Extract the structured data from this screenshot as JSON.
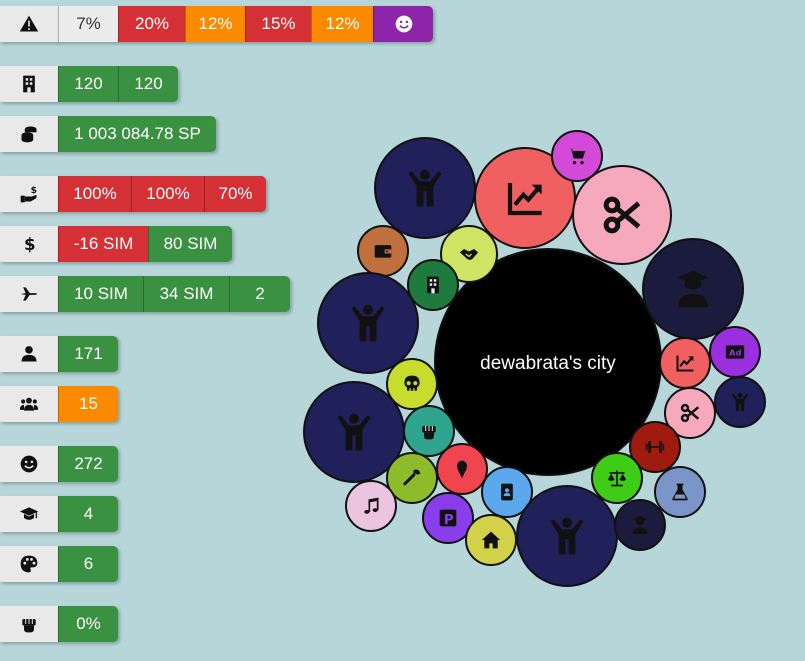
{
  "colors": {
    "green": "#3b9142",
    "red": "#d53036",
    "orange": "#fb8a00",
    "white": "#ececec",
    "purple": "#8e24aa",
    "icon_bg": "#e9e9e9",
    "background": "#b6d6da"
  },
  "stats": [
    {
      "icon": "warning-icon",
      "cells": [
        "7%",
        "20%",
        "12%",
        "15%",
        "12%",
        "smiley-icon"
      ],
      "cell_colors": [
        "w",
        "r",
        "o",
        "r",
        "o",
        "p"
      ]
    },
    {
      "icon": "building-icon",
      "cells": [
        "120",
        "120"
      ],
      "cell_colors": [
        "g",
        "g"
      ]
    },
    {
      "icon": "coins-icon",
      "cells": [
        "1 003 084.78 SP"
      ],
      "cell_colors": [
        "g"
      ]
    },
    {
      "icon": "hand-money-icon",
      "cells": [
        "100%",
        "100%",
        "70%"
      ],
      "cell_colors": [
        "r",
        "r",
        "r"
      ]
    },
    {
      "icon": "dollar-icon",
      "cells": [
        "-16 SIM",
        "80 SIM"
      ],
      "cell_colors": [
        "r",
        "g"
      ]
    },
    {
      "icon": "plane-icon",
      "cells": [
        "10 SIM",
        "34 SIM",
        "2"
      ],
      "cell_colors": [
        "g",
        "g",
        "g"
      ]
    },
    {
      "icon": "person-icon",
      "cells": [
        "171"
      ],
      "cell_colors": [
        "g"
      ]
    },
    {
      "icon": "group-icon",
      "cells": [
        "15"
      ],
      "cell_colors": [
        "o"
      ]
    },
    {
      "icon": "smiley-icon",
      "cells": [
        "272"
      ],
      "cell_colors": [
        "g"
      ]
    },
    {
      "icon": "graduation-cap-icon",
      "cells": [
        "4"
      ],
      "cell_colors": [
        "g"
      ]
    },
    {
      "icon": "palette-icon",
      "cells": [
        "6"
      ],
      "cell_colors": [
        "g"
      ]
    },
    {
      "icon": "fist-icon",
      "cells": [
        "0%"
      ],
      "cell_colors": [
        "g"
      ]
    }
  ],
  "city": {
    "name": "dewabrata's city",
    "bubbles": [
      {
        "name": "city-core",
        "color": "#000000",
        "icon": ""
      },
      {
        "name": "people",
        "color": "#20205a",
        "icon": "person-cheer-icon"
      },
      {
        "name": "trade",
        "color": "#f06060",
        "icon": "chart-up-icon"
      },
      {
        "name": "shop",
        "color": "#d44ad8",
        "icon": "cart-icon"
      },
      {
        "name": "crafts",
        "color": "#f6a8bd",
        "icon": "scissors-icon"
      },
      {
        "name": "education",
        "color": "#1b1b3e",
        "icon": "graduate-icon"
      },
      {
        "name": "wallet",
        "color": "#c0703f",
        "icon": "wallet-icon"
      },
      {
        "name": "handshake",
        "color": "#cfe364",
        "icon": "handshake-icon"
      },
      {
        "name": "buildings",
        "color": "#1e7a3d",
        "icon": "building-icon"
      },
      {
        "name": "people-west",
        "color": "#20205a",
        "icon": "person-cheer-icon"
      },
      {
        "name": "danger",
        "color": "#c6dd2e",
        "icon": "skull-icon"
      },
      {
        "name": "people-southwest",
        "color": "#20205a",
        "icon": "person-cheer-icon"
      },
      {
        "name": "resistance",
        "color": "#2fa48e",
        "icon": "fist-icon"
      },
      {
        "name": "tools",
        "color": "#8dbb2c",
        "icon": "wrench-icon"
      },
      {
        "name": "food",
        "color": "#f0454f",
        "icon": "icecream-icon"
      },
      {
        "name": "music",
        "color": "#ebc4e0",
        "icon": "music-icon"
      },
      {
        "name": "parking",
        "color": "#8a3dea",
        "icon": "parking-icon"
      },
      {
        "name": "id-office",
        "color": "#5ba8ec",
        "icon": "id-card-icon"
      },
      {
        "name": "housing",
        "color": "#d1d24a",
        "icon": "home-icon"
      },
      {
        "name": "people-south",
        "color": "#20205a",
        "icon": "person-cheer-icon"
      },
      {
        "name": "trade-small",
        "color": "#f06060",
        "icon": "chart-up-icon"
      },
      {
        "name": "ads",
        "color": "#9a2fe0",
        "icon": "ad-icon"
      },
      {
        "name": "crafts-small",
        "color": "#f6a8bd",
        "icon": "scissors-icon"
      },
      {
        "name": "people-east",
        "color": "#20205a",
        "icon": "person-cheer-icon"
      },
      {
        "name": "gym",
        "color": "#a01b0f",
        "icon": "dumbbell-icon"
      },
      {
        "name": "justice",
        "color": "#3fcc16",
        "icon": "scales-icon"
      },
      {
        "name": "science",
        "color": "#7b95c8",
        "icon": "flask-icon"
      },
      {
        "name": "school-small",
        "color": "#1b1b3e",
        "icon": "graduate-icon"
      }
    ]
  }
}
